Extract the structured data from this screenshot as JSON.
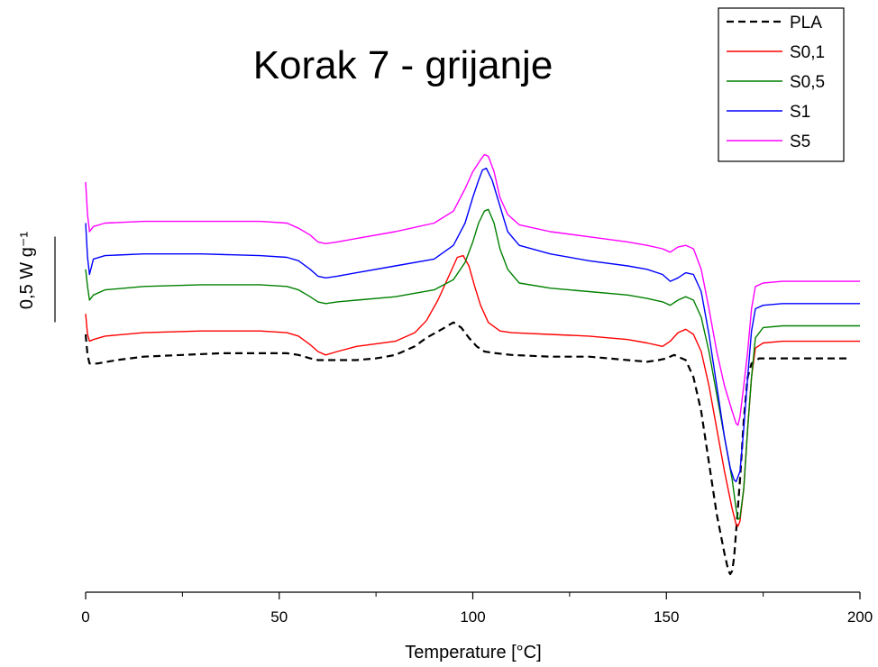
{
  "chart_data": {
    "type": "line",
    "title": "Korak 7 - grijanje",
    "xlabel": "Temperature [°C]",
    "scale_bar_label": "0,5 W g⁻¹",
    "scale_bar_value": 0.5,
    "xlim": [
      0,
      200
    ],
    "xticks": [
      0,
      50,
      100,
      150,
      200
    ],
    "grid": false,
    "legend_position": "top-right",
    "colors": {
      "PLA": "#000000",
      "S0,1": "#ff0000",
      "S0,5": "#008000",
      "S1": "#0000ff",
      "S5": "#ff00ff"
    },
    "series": [
      {
        "name": "PLA",
        "style": "dashed",
        "color": "#000000",
        "x": [
          0,
          0.5,
          1,
          3,
          8,
          15,
          25,
          35,
          45,
          52,
          55,
          58,
          60,
          62,
          65,
          70,
          75,
          80,
          85,
          88,
          92,
          95,
          97,
          99,
          101,
          103,
          106,
          110,
          120,
          130,
          140,
          145,
          148,
          150,
          152,
          155,
          157,
          159,
          161,
          163,
          165,
          166,
          166.5,
          167,
          167.5,
          168,
          169,
          170,
          171,
          172,
          174,
          176,
          180,
          185,
          190,
          195,
          197
        ],
        "y": [
          0.1,
          -0.02,
          -0.07,
          -0.07,
          -0.05,
          -0.03,
          -0.02,
          -0.01,
          -0.01,
          -0.01,
          -0.02,
          -0.04,
          -0.05,
          -0.05,
          -0.05,
          -0.05,
          -0.04,
          -0.02,
          0.03,
          0.08,
          0.13,
          0.17,
          0.14,
          0.08,
          0.03,
          0.0,
          -0.01,
          -0.02,
          -0.03,
          -0.03,
          -0.05,
          -0.06,
          -0.05,
          -0.04,
          -0.02,
          -0.05,
          -0.15,
          -0.35,
          -0.65,
          -0.95,
          -1.18,
          -1.28,
          -1.3,
          -1.28,
          -1.2,
          -1.05,
          -0.75,
          -0.4,
          -0.15,
          -0.07,
          -0.04,
          -0.04,
          -0.04,
          -0.04,
          -0.04,
          -0.04,
          -0.04
        ]
      },
      {
        "name": "S0,1",
        "style": "solid",
        "color": "#ff0000",
        "x": [
          0,
          0.5,
          1,
          2,
          5,
          15,
          30,
          45,
          52,
          55,
          58,
          60,
          62,
          65,
          70,
          80,
          85,
          88,
          91,
          94,
          96,
          97.5,
          99,
          100.5,
          102,
          104,
          107,
          110,
          120,
          130,
          140,
          145,
          149,
          151,
          153,
          155,
          157,
          159,
          161,
          163,
          165,
          167,
          168,
          168.5,
          169,
          170,
          171,
          172,
          173,
          175,
          180,
          190,
          200
        ],
        "y": [
          0.22,
          0.1,
          0.06,
          0.07,
          0.09,
          0.11,
          0.12,
          0.12,
          0.11,
          0.09,
          0.04,
          0.0,
          -0.02,
          0.0,
          0.03,
          0.06,
          0.11,
          0.18,
          0.3,
          0.45,
          0.55,
          0.56,
          0.5,
          0.38,
          0.27,
          0.17,
          0.12,
          0.11,
          0.1,
          0.09,
          0.07,
          0.05,
          0.03,
          0.06,
          0.11,
          0.13,
          0.1,
          0.0,
          -0.2,
          -0.45,
          -0.7,
          -0.92,
          -1.01,
          -1.02,
          -0.99,
          -0.8,
          -0.45,
          -0.15,
          0.02,
          0.05,
          0.06,
          0.06,
          0.06
        ]
      },
      {
        "name": "S0,5",
        "style": "solid",
        "color": "#008000",
        "x": [
          0,
          0.5,
          1,
          2,
          5,
          15,
          30,
          45,
          52,
          55,
          58,
          60,
          62,
          65,
          70,
          80,
          90,
          95,
          98,
          100,
          101.5,
          103,
          104,
          105.5,
          107,
          109,
          112,
          120,
          130,
          140,
          145,
          149,
          151,
          153,
          155,
          157,
          159,
          161,
          163,
          165,
          167,
          168,
          168.5,
          169,
          170,
          171,
          172,
          173,
          175,
          180,
          190,
          200
        ],
        "y": [
          0.48,
          0.38,
          0.3,
          0.33,
          0.36,
          0.38,
          0.39,
          0.39,
          0.38,
          0.36,
          0.32,
          0.29,
          0.28,
          0.29,
          0.3,
          0.32,
          0.36,
          0.42,
          0.52,
          0.64,
          0.75,
          0.82,
          0.83,
          0.75,
          0.6,
          0.48,
          0.4,
          0.37,
          0.35,
          0.33,
          0.31,
          0.29,
          0.27,
          0.3,
          0.32,
          0.3,
          0.2,
          0.0,
          -0.25,
          -0.5,
          -0.75,
          -0.92,
          -0.98,
          -0.97,
          -0.8,
          -0.45,
          -0.15,
          0.08,
          0.14,
          0.15,
          0.15,
          0.15
        ]
      },
      {
        "name": "S1",
        "style": "solid",
        "color": "#0000ff",
        "x": [
          0,
          0.5,
          1,
          2,
          5,
          15,
          30,
          45,
          52,
          55,
          58,
          60,
          62,
          65,
          70,
          80,
          90,
          95,
          98,
          100,
          101.5,
          102.5,
          103.5,
          105,
          107,
          109,
          112,
          120,
          130,
          140,
          145,
          149,
          151,
          153,
          155,
          157,
          159,
          161,
          163,
          165,
          166.5,
          167.5,
          168,
          169,
          170,
          171,
          172,
          173,
          175,
          180,
          190,
          200
        ],
        "y": [
          0.75,
          0.55,
          0.45,
          0.54,
          0.56,
          0.57,
          0.57,
          0.56,
          0.55,
          0.53,
          0.48,
          0.44,
          0.43,
          0.44,
          0.46,
          0.5,
          0.54,
          0.62,
          0.75,
          0.9,
          1.0,
          1.06,
          1.07,
          1.0,
          0.85,
          0.7,
          0.62,
          0.57,
          0.53,
          0.5,
          0.48,
          0.45,
          0.41,
          0.43,
          0.46,
          0.45,
          0.35,
          0.1,
          -0.2,
          -0.5,
          -0.68,
          -0.75,
          -0.76,
          -0.7,
          -0.45,
          -0.15,
          0.12,
          0.25,
          0.27,
          0.28,
          0.28,
          0.28
        ]
      },
      {
        "name": "S5",
        "style": "solid",
        "color": "#ff00ff",
        "x": [
          0,
          0.5,
          1,
          2,
          5,
          15,
          30,
          45,
          52,
          55,
          58,
          60,
          62,
          65,
          70,
          80,
          90,
          95,
          98,
          100,
          102,
          103,
          104,
          105.5,
          107,
          109,
          112,
          120,
          130,
          140,
          145,
          149,
          151,
          153,
          155,
          157,
          159,
          161,
          163,
          165,
          167,
          168,
          168.5,
          169,
          170,
          171,
          172,
          173,
          175,
          180,
          190,
          200
        ],
        "y": [
          0.99,
          0.8,
          0.7,
          0.73,
          0.75,
          0.76,
          0.76,
          0.76,
          0.75,
          0.72,
          0.68,
          0.64,
          0.63,
          0.64,
          0.66,
          0.7,
          0.75,
          0.82,
          0.95,
          1.05,
          1.12,
          1.15,
          1.14,
          1.05,
          0.9,
          0.8,
          0.74,
          0.7,
          0.67,
          0.64,
          0.62,
          0.6,
          0.58,
          0.61,
          0.62,
          0.6,
          0.48,
          0.25,
          0.0,
          -0.2,
          -0.35,
          -0.42,
          -0.43,
          -0.38,
          -0.2,
          0.0,
          0.25,
          0.38,
          0.4,
          0.41,
          0.41,
          0.41
        ]
      }
    ]
  }
}
